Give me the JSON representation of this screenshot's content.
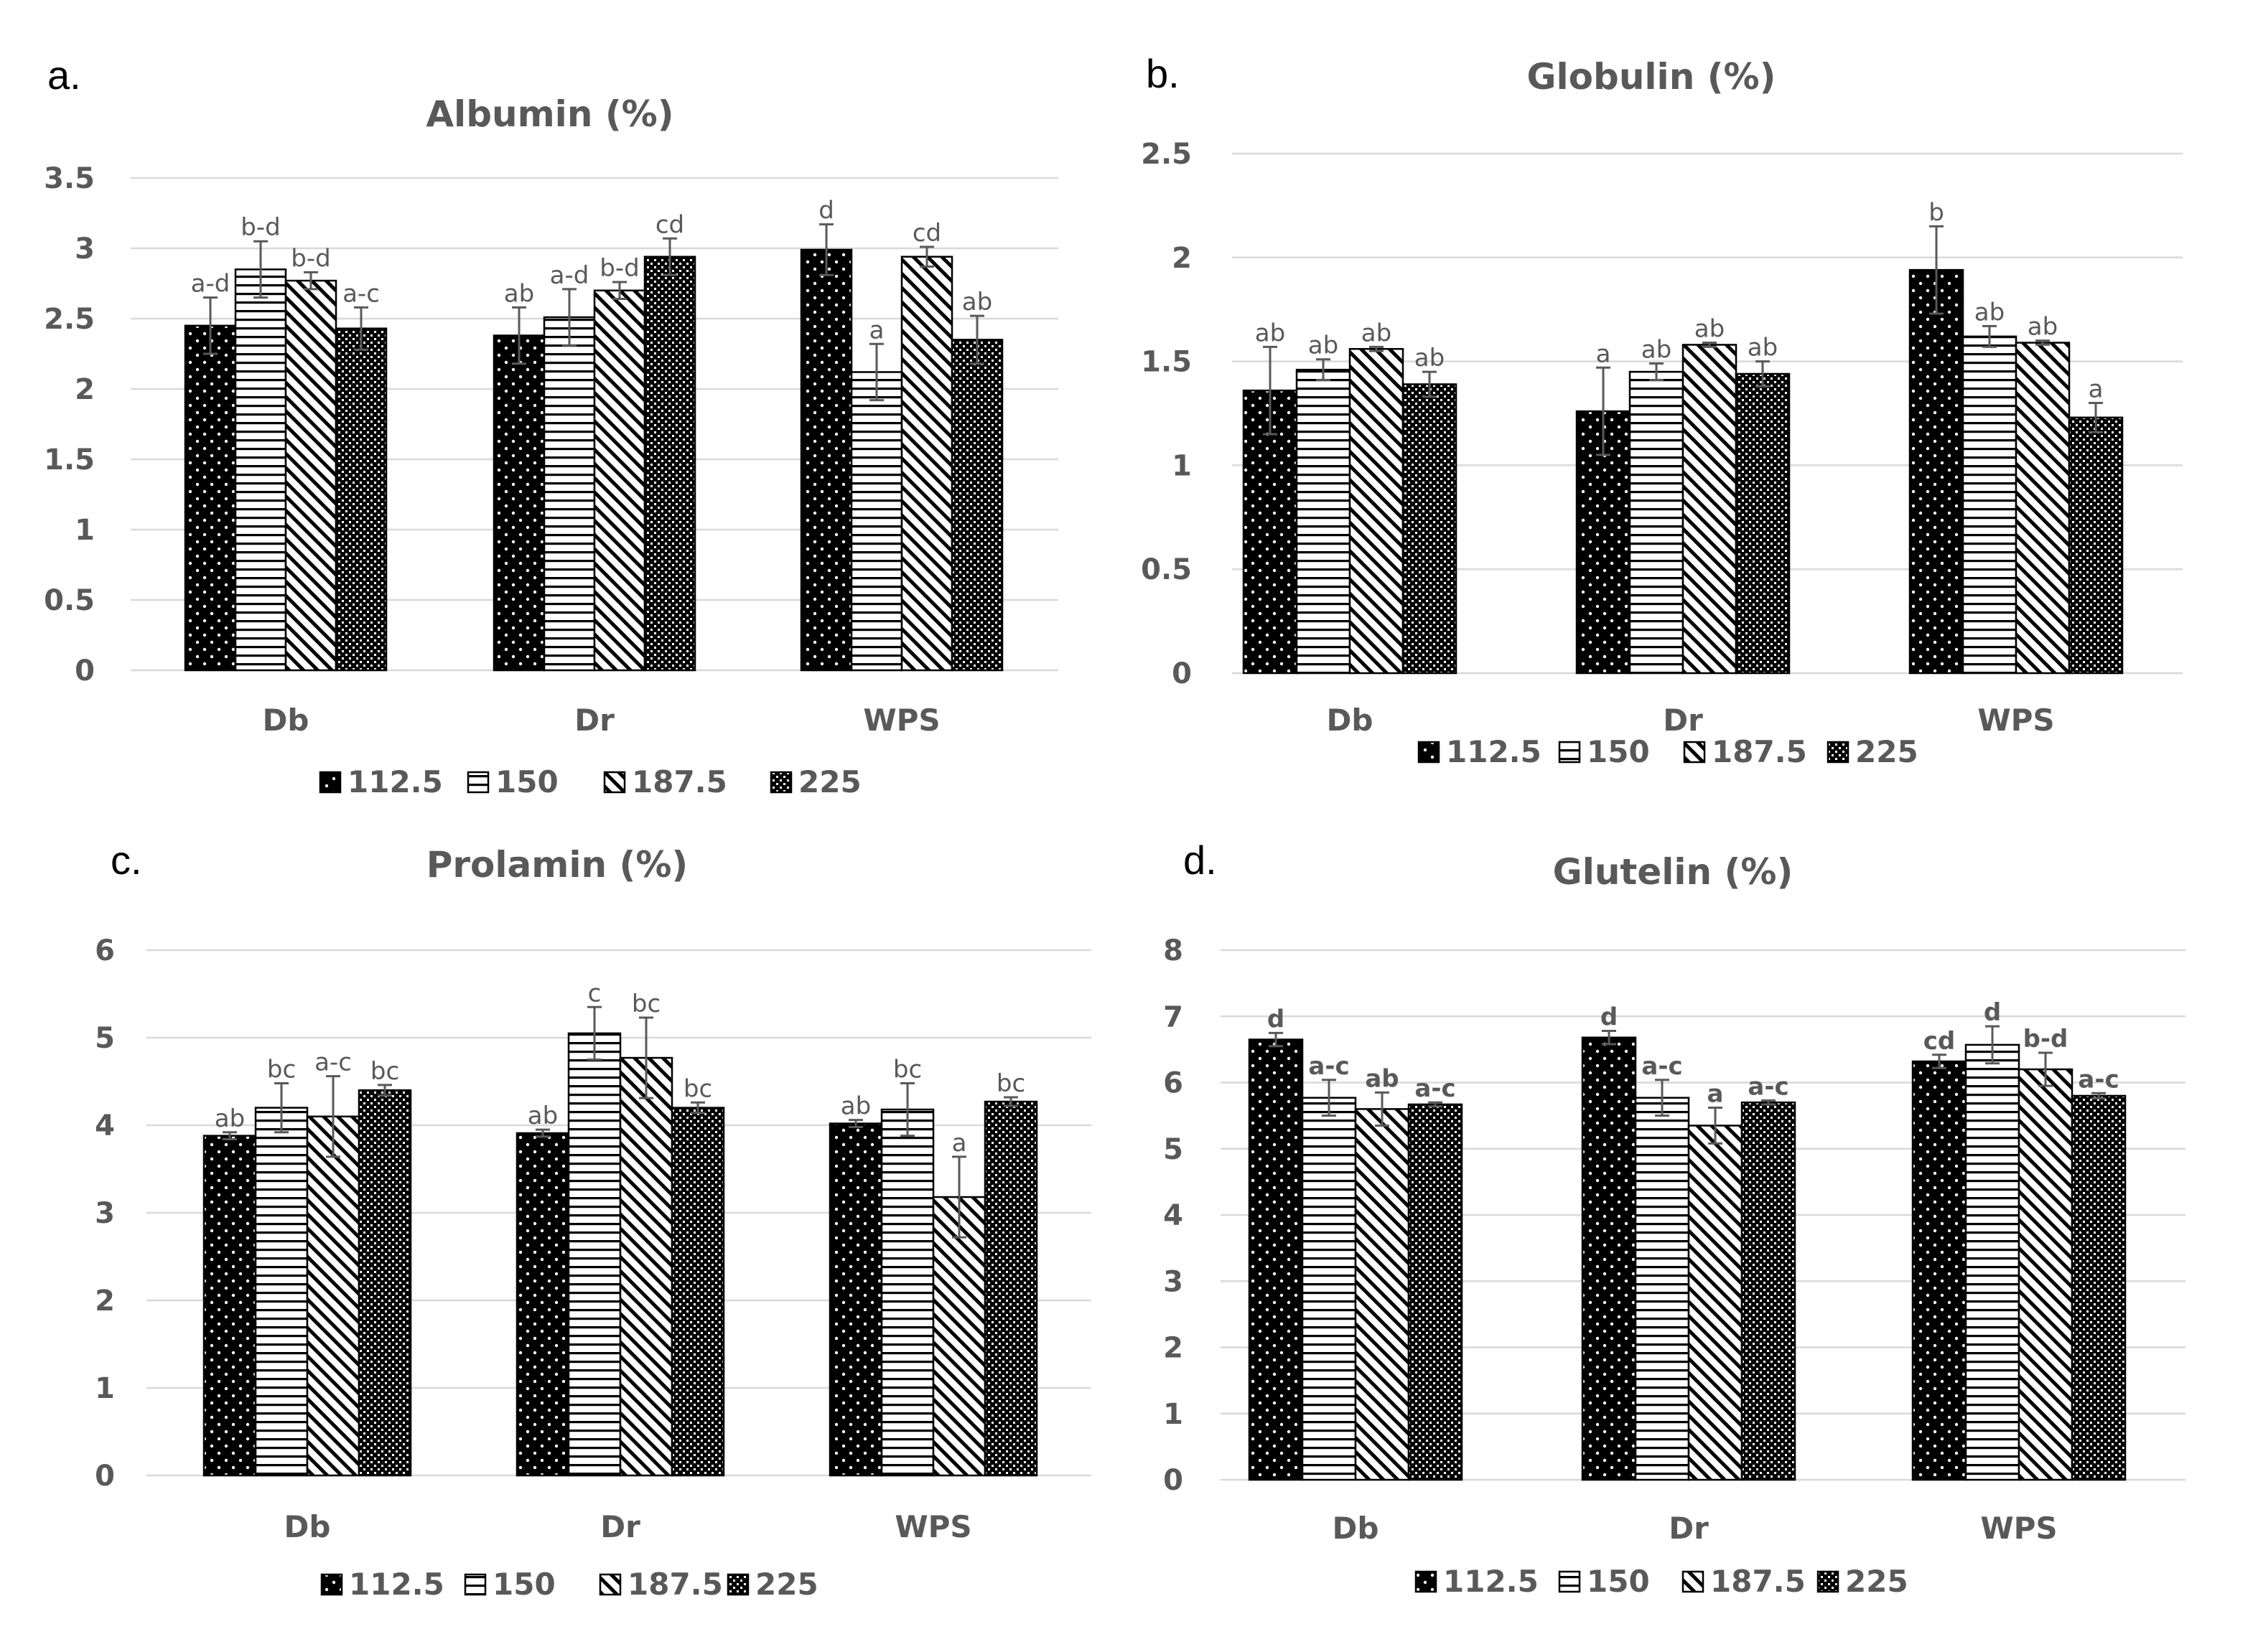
{
  "series_names": [
    "112.5",
    "150",
    "187.5",
    "225"
  ],
  "series_patterns": [
    "dots",
    "horizontal-lines",
    "diagonal-lines",
    "checker"
  ],
  "colors": {
    "text": "#595959",
    "grid": "#d9d9d9",
    "bar_fill": "#000000",
    "background": "#ffffff"
  },
  "chart_data": [
    {
      "panel": "a.",
      "type": "bar",
      "title": "Albumin (%)",
      "categories": [
        "Db",
        "Dr",
        "WPS"
      ],
      "ylim": [
        0,
        3.5
      ],
      "yticks": [
        "0",
        "0.5",
        "1",
        "1.5",
        "2",
        "2.5",
        "3",
        "3.5"
      ],
      "legend_position": "bottom",
      "series": [
        {
          "name": "112.5",
          "values": [
            2.45,
            2.38,
            2.99
          ],
          "errors": [
            0.2,
            0.2,
            0.18
          ],
          "labels": [
            "a-d",
            "ab",
            "d"
          ]
        },
        {
          "name": "150",
          "values": [
            2.85,
            2.51,
            2.12
          ],
          "errors": [
            0.2,
            0.2,
            0.2
          ],
          "labels": [
            "b-d",
            "a-d",
            "a"
          ]
        },
        {
          "name": "187.5",
          "values": [
            2.77,
            2.7,
            2.94
          ],
          "errors": [
            0.06,
            0.06,
            0.07
          ],
          "labels": [
            "b-d",
            "b-d",
            "cd"
          ]
        },
        {
          "name": "225",
          "values": [
            2.43,
            2.94,
            2.35
          ],
          "errors": [
            0.15,
            0.13,
            0.17
          ],
          "labels": [
            "a-c",
            "cd",
            "ab"
          ]
        }
      ]
    },
    {
      "panel": "b.",
      "type": "bar",
      "title": "Globulin (%)",
      "categories": [
        "Db",
        "Dr",
        "WPS"
      ],
      "ylim": [
        0,
        2.5
      ],
      "yticks": [
        "0",
        "0.5",
        "1",
        "1.5",
        "2",
        "2.5"
      ],
      "legend_position": "bottom",
      "series": [
        {
          "name": "112.5",
          "values": [
            1.36,
            1.26,
            1.94
          ],
          "errors": [
            0.21,
            0.21,
            0.21
          ],
          "labels": [
            "ab",
            "a",
            "b"
          ]
        },
        {
          "name": "150",
          "values": [
            1.46,
            1.45,
            1.62
          ],
          "errors": [
            0.05,
            0.04,
            0.05
          ],
          "labels": [
            "ab",
            "ab",
            "ab"
          ]
        },
        {
          "name": "187.5",
          "values": [
            1.56,
            1.58,
            1.59
          ],
          "errors": [
            0.01,
            0.01,
            0.01
          ],
          "labels": [
            "ab",
            "ab",
            "ab"
          ]
        },
        {
          "name": "225",
          "values": [
            1.39,
            1.44,
            1.23
          ],
          "errors": [
            0.06,
            0.06,
            0.07
          ],
          "labels": [
            "ab",
            "ab",
            "a"
          ]
        }
      ]
    },
    {
      "panel": "c.",
      "type": "bar",
      "title": "Prolamin (%)",
      "categories": [
        "Db",
        "Dr",
        "WPS"
      ],
      "ylim": [
        0,
        6
      ],
      "yticks": [
        "0",
        "1",
        "2",
        "3",
        "4",
        "5",
        "6"
      ],
      "legend_position": "bottom",
      "series": [
        {
          "name": "112.5",
          "values": [
            3.88,
            3.91,
            4.02
          ],
          "errors": [
            0.04,
            0.04,
            0.04
          ],
          "labels": [
            "ab",
            "ab",
            "ab"
          ]
        },
        {
          "name": "150",
          "values": [
            4.2,
            5.05,
            4.18
          ],
          "errors": [
            0.28,
            0.3,
            0.3
          ],
          "labels": [
            "bc",
            "c",
            "bc"
          ]
        },
        {
          "name": "187.5",
          "values": [
            4.1,
            4.77,
            3.18
          ],
          "errors": [
            0.46,
            0.46,
            0.46
          ],
          "labels": [
            "a-c",
            "bc",
            "a"
          ]
        },
        {
          "name": "225",
          "values": [
            4.4,
            4.2,
            4.27
          ],
          "errors": [
            0.06,
            0.06,
            0.05
          ],
          "labels": [
            "bc",
            "bc",
            "bc"
          ]
        }
      ]
    },
    {
      "panel": "d.",
      "type": "bar",
      "title": "Glutelin (%)",
      "categories": [
        "Db",
        "Dr",
        "WPS"
      ],
      "ylim": [
        0,
        8
      ],
      "yticks": [
        "0",
        "1",
        "2",
        "3",
        "4",
        "5",
        "6",
        "7",
        "8"
      ],
      "legend_position": "bottom",
      "series": [
        {
          "name": "112.5",
          "values": [
            6.65,
            6.68,
            6.32
          ],
          "errors": [
            0.1,
            0.1,
            0.1
          ],
          "labels": [
            "d",
            "d",
            "cd"
          ]
        },
        {
          "name": "150",
          "values": [
            5.77,
            5.77,
            6.57
          ],
          "errors": [
            0.27,
            0.27,
            0.28
          ],
          "labels": [
            "a-c",
            "a-c",
            "d"
          ]
        },
        {
          "name": "187.5",
          "values": [
            5.6,
            5.35,
            6.2
          ],
          "errors": [
            0.25,
            0.27,
            0.25
          ],
          "labels": [
            "ab",
            "a",
            "b-d"
          ]
        },
        {
          "name": "225",
          "values": [
            5.67,
            5.7,
            5.8
          ],
          "errors": [
            0.03,
            0.03,
            0.04
          ],
          "labels": [
            "a-c",
            "a-c",
            "a-c"
          ]
        }
      ]
    }
  ]
}
